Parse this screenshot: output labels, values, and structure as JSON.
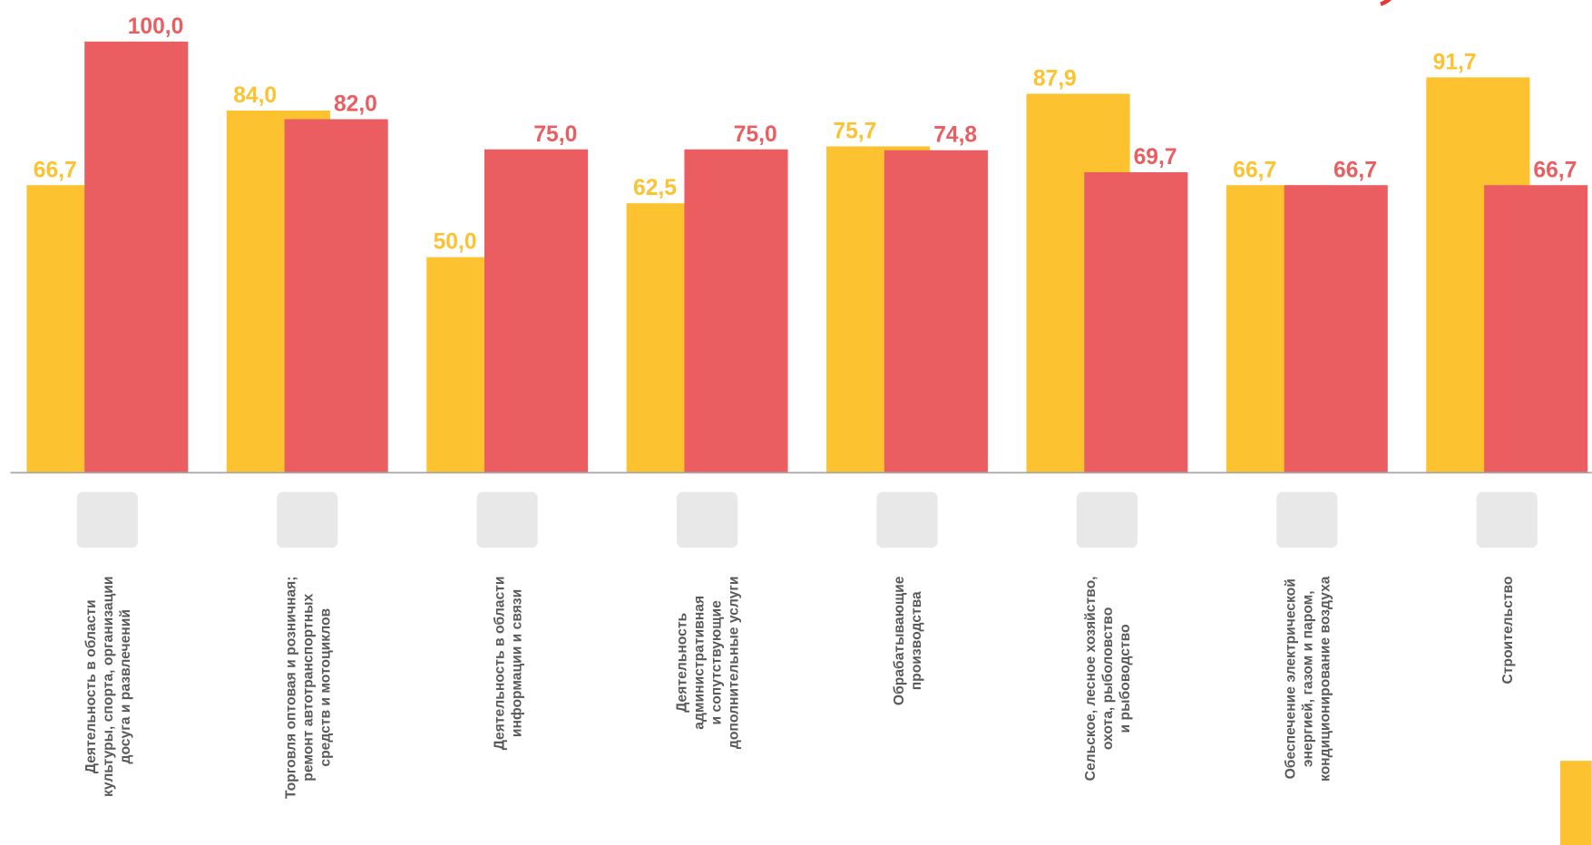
{
  "chart_data": {
    "type": "bar",
    "categories": [
      [
        "Деятельность в области",
        "культуры, спорта, организации",
        "досуга и развлечений"
      ],
      [
        "Торговля оптовая и розничная;",
        "ремонт автотранспортных",
        "средств  и мотоциклов"
      ],
      [
        "Деятельность в области",
        "информации  и связи"
      ],
      [
        "Деятельность",
        "административная",
        "и сопутствующие",
        "дополнительные  услуги"
      ],
      [
        "Обрабатывающие",
        "производства"
      ],
      [
        "Сельское, лесное хозяйство,",
        "охота, рыболовство",
        "и рыбоводство"
      ],
      [
        "Обеспечение электрической",
        "энергией, газом и паром,",
        "кондиционирование воздуха"
      ],
      [
        "Строительство"
      ]
    ],
    "series": [
      {
        "color": "#fdc22f",
        "values": [
          66.7,
          84.0,
          50.0,
          62.5,
          75.7,
          87.9,
          66.7,
          91.7
        ],
        "value_labels": [
          "66,7",
          "84,0",
          "50,0",
          "62,5",
          "75,7",
          "87,9",
          "66,7",
          "91,7"
        ]
      },
      {
        "color": "#ea5e61",
        "values": [
          100.0,
          82.0,
          75.0,
          75.0,
          74.8,
          69.7,
          66.7,
          66.7
        ],
        "value_labels": [
          "100,0",
          "82,0",
          "75,0",
          "75,0",
          "74,8",
          "69,7",
          "66,7",
          "66,7"
        ]
      }
    ],
    "ylim": [
      0,
      100
    ]
  }
}
